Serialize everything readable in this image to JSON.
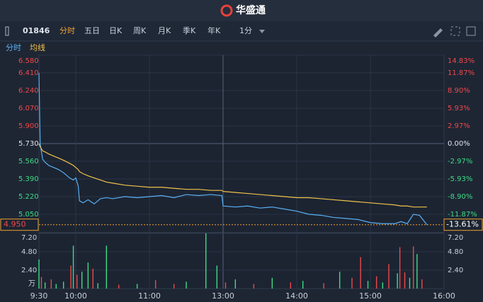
{
  "header": {
    "logo": "华盛通"
  },
  "toolbar": {
    "code": "01846",
    "tabs": [
      "分时",
      "五日",
      "日K",
      "周K",
      "月K",
      "季K",
      "年K"
    ],
    "interval": "1分"
  },
  "chart_data": [
    {
      "type": "line",
      "legend": true,
      "xlim": [
        0,
        330
      ],
      "xticks": [
        {
          "value": 0,
          "label": "9:30"
        },
        {
          "value": 30,
          "label": "10:00"
        },
        {
          "value": 90,
          "label": "11:00"
        },
        {
          "value": 150,
          "label": "13:00"
        },
        {
          "value": 210,
          "label": "14:00"
        },
        {
          "value": 270,
          "label": "15:00"
        },
        {
          "value": 330,
          "label": "16:00"
        }
      ],
      "ylim": [
        4.88,
        6.58
      ],
      "yticks": [
        {
          "value": 6.58,
          "label": "6.580"
        },
        {
          "value": 6.41,
          "label": "6.410"
        },
        {
          "value": 6.24,
          "label": "6.240"
        },
        {
          "value": 6.07,
          "label": "6.070"
        },
        {
          "value": 5.9,
          "label": "5.900"
        },
        {
          "value": 5.73,
          "label": "5.730"
        },
        {
          "value": 5.56,
          "label": "5.560"
        },
        {
          "value": 5.39,
          "label": "5.390"
        },
        {
          "value": 5.22,
          "label": "5.220"
        },
        {
          "value": 5.05,
          "label": "5.050"
        }
      ],
      "y2lim": [
        -14.83,
        14.83
      ],
      "y2ticks": [
        {
          "value": 14.83,
          "label": "14.83%"
        },
        {
          "value": 11.87,
          "label": "11.87%"
        },
        {
          "value": 8.9,
          "label": "8.90%"
        },
        {
          "value": 5.93,
          "label": "5.93%"
        },
        {
          "value": 2.97,
          "label": "2.97%"
        },
        {
          "value": 0,
          "label": "0.00%"
        },
        {
          "value": -2.97,
          "label": "-2.97%"
        },
        {
          "value": -5.93,
          "label": "-5.93%"
        },
        {
          "value": -8.9,
          "label": "-8.90%"
        },
        {
          "value": -11.87,
          "label": "-11.87%"
        }
      ],
      "grid": true,
      "last_price": {
        "value": 4.95,
        "label": "4.950"
      },
      "last_change": {
        "value": -13.61,
        "label": "-13.61%"
      },
      "x": [
        0,
        1,
        2,
        3,
        5,
        8,
        12,
        16,
        20,
        25,
        28,
        30,
        32,
        33,
        36,
        40,
        45,
        50,
        55,
        60,
        70,
        80,
        90,
        100,
        110,
        120,
        130,
        140,
        149,
        150,
        160,
        170,
        180,
        190,
        200,
        210,
        220,
        230,
        240,
        250,
        260,
        270,
        280,
        290,
        295,
        300,
        305,
        310,
        314,
        316
      ],
      "series": [
        {
          "name": "分时",
          "color": "#5ab0f5",
          "values": [
            6.41,
            5.73,
            5.65,
            5.58,
            5.55,
            5.52,
            5.5,
            5.48,
            5.45,
            5.4,
            5.38,
            5.4,
            5.32,
            5.18,
            5.16,
            5.19,
            5.15,
            5.2,
            5.21,
            5.2,
            5.22,
            5.21,
            5.22,
            5.23,
            5.21,
            5.24,
            5.23,
            5.24,
            5.23,
            5.13,
            5.12,
            5.13,
            5.11,
            5.12,
            5.1,
            5.08,
            5.05,
            5.04,
            5.02,
            5.01,
            5.0,
            4.97,
            4.96,
            4.96,
            4.98,
            4.96,
            5.05,
            5.04,
            4.98,
            4.95
          ]
        },
        {
          "name": "均线",
          "color": "#f0c24a",
          "values": [
            5.73,
            5.7,
            5.68,
            5.66,
            5.65,
            5.63,
            5.61,
            5.59,
            5.57,
            5.54,
            5.52,
            5.5,
            5.48,
            5.46,
            5.44,
            5.42,
            5.4,
            5.38,
            5.36,
            5.35,
            5.33,
            5.32,
            5.31,
            5.31,
            5.3,
            5.29,
            5.29,
            5.28,
            5.28,
            5.27,
            5.26,
            5.25,
            5.24,
            5.23,
            5.22,
            5.21,
            5.21,
            5.2,
            5.19,
            5.18,
            5.17,
            5.16,
            5.15,
            5.14,
            5.13,
            5.13,
            5.12,
            5.12,
            5.12,
            5.12
          ]
        }
      ]
    },
    {
      "type": "bar",
      "unit": "万",
      "xlim": [
        0,
        330
      ],
      "ylim": [
        0,
        7.2
      ],
      "yticks": [
        {
          "value": 7.2,
          "label": "7.20"
        },
        {
          "value": 4.8,
          "label": "4.80"
        },
        {
          "value": 2.4,
          "label": "2.40"
        }
      ],
      "x": [
        0,
        2,
        5,
        10,
        14,
        20,
        26,
        28,
        31,
        35,
        40,
        44,
        48,
        55,
        65,
        80,
        95,
        110,
        120,
        136,
        145,
        152,
        160,
        175,
        190,
        205,
        215,
        232,
        245,
        255,
        262,
        268,
        275,
        280,
        285,
        292,
        294,
        298,
        302,
        305,
        308,
        312
      ],
      "values": [
        3.8,
        1.5,
        0.8,
        1.2,
        0.6,
        0.9,
        3.0,
        5.6,
        1.8,
        2.2,
        3.4,
        2.6,
        0.7,
        5.6,
        0.5,
        0.6,
        1.1,
        0.6,
        0.9,
        7.2,
        3.0,
        0.8,
        1.2,
        0.6,
        1.4,
        0.8,
        1.0,
        0.7,
        2.2,
        1.4,
        4.1,
        1.0,
        1.6,
        0.8,
        3.2,
        2.0,
        5.4,
        2.1,
        1.4,
        5.5,
        4.5,
        1.2
      ],
      "colors": [
        "#3ddc84",
        "#f04848",
        "#3ddc84",
        "#f04848",
        "#3ddc84",
        "#3ddc84",
        "#f04848",
        "#3ddc84",
        "#f04848",
        "#3ddc84",
        "#3ddc84",
        "#f04848",
        "#3ddc84",
        "#3ddc84",
        "#f04848",
        "#3ddc84",
        "#f04848",
        "#f04848",
        "#3ddc84",
        "#3ddc84",
        "#3ddc84",
        "#f04848",
        "#3ddc84",
        "#f04848",
        "#3ddc84",
        "#f04848",
        "#3ddc84",
        "#f04848",
        "#3ddc84",
        "#f04848",
        "#f04848",
        "#3ddc84",
        "#f04848",
        "#3ddc84",
        "#f04848",
        "#3ddc84",
        "#f04848",
        "#f04848",
        "#3ddc84",
        "#f04848",
        "#3ddc84",
        "#f04848"
      ]
    }
  ]
}
